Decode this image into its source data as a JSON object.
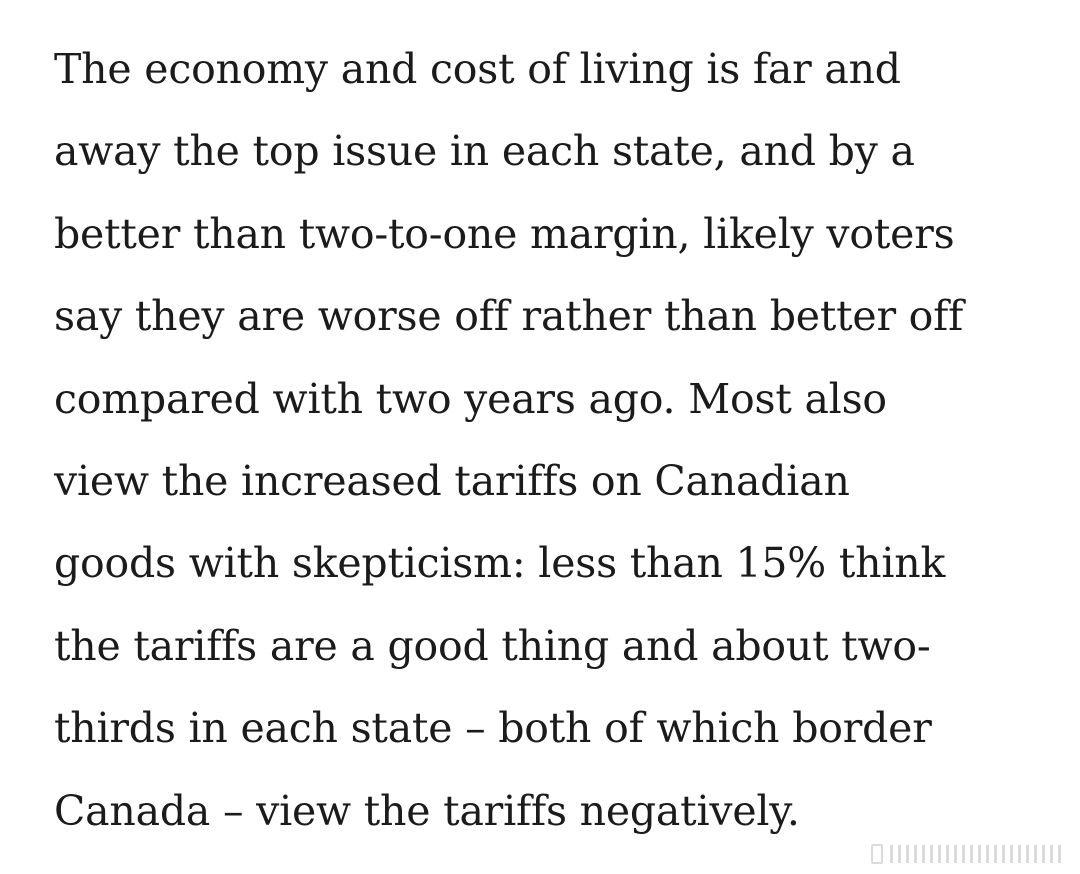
{
  "article": {
    "lines": [
      "The economy and cost of living is far and",
      "away the top issue in each state, and by a",
      "better than two-to-one margin, likely voters",
      "say they are worse off rather than better off",
      "compared with two years ago. Most also",
      "view the increased tariffs on Canadian",
      "goods with skepticism: less than 15% think",
      "the tariffs are a good thing and about two-",
      "thirds in each state – both of which border",
      "Canada – view the tariffs negatively."
    ]
  },
  "watermark": {
    "icon": "watermark-logo-icon",
    "color": "#9a9a9a"
  }
}
